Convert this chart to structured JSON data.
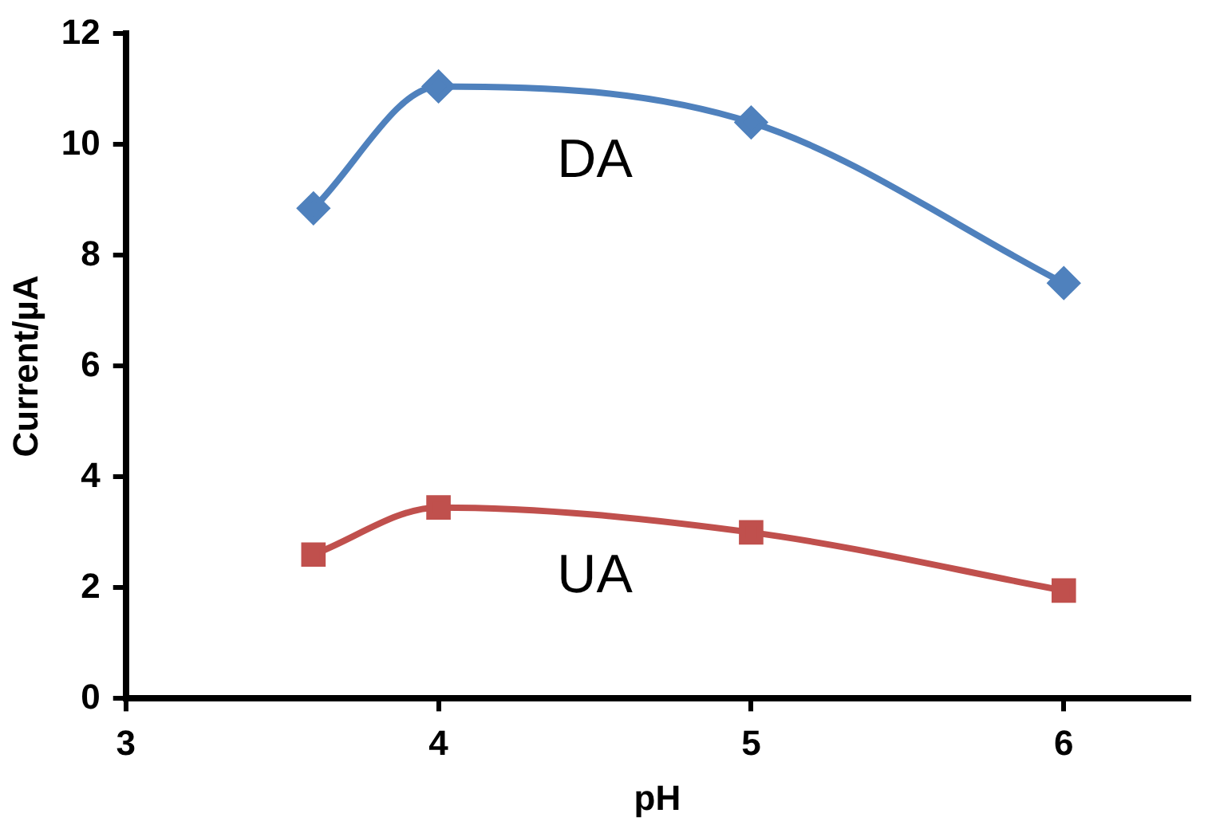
{
  "chart_data": {
    "type": "line",
    "xlabel": "pH",
    "ylabel": "Current/µA",
    "x": [
      3.6,
      4,
      5,
      6
    ],
    "series": [
      {
        "name": "DA",
        "color": "#4f81bd",
        "marker": "diamond",
        "values": [
          8.85,
          11.05,
          10.4,
          7.5
        ]
      },
      {
        "name": "UA",
        "color": "#c0504d",
        "marker": "square",
        "values": [
          2.6,
          3.45,
          3.0,
          1.95
        ]
      }
    ],
    "xlim": [
      3,
      6.4
    ],
    "xticks": [
      3,
      4,
      5,
      6
    ],
    "ylim": [
      0,
      12
    ],
    "yticks": [
      0,
      2,
      4,
      6,
      8,
      10,
      12
    ],
    "grid": false,
    "legend": false,
    "line_style": "solid"
  }
}
